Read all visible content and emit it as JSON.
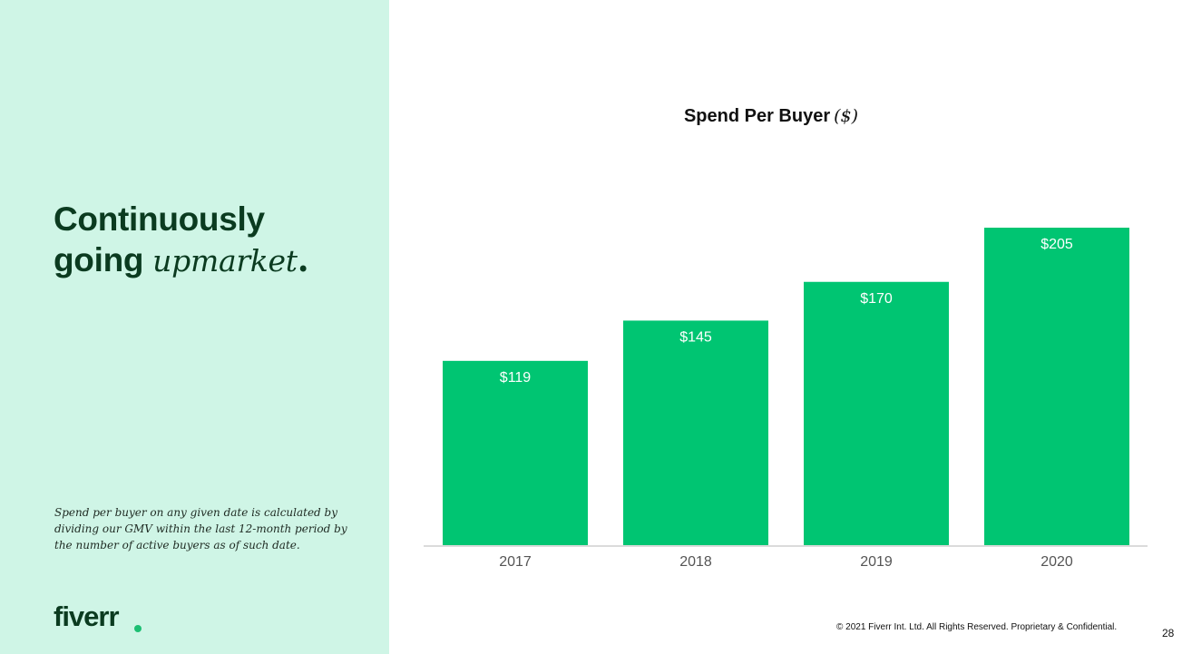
{
  "heading": {
    "line1": "Continuously",
    "line2_plain": "going ",
    "line2_accent": "upmarket",
    "period": "."
  },
  "footnote": "Spend per buyer on any given date is calculated by dividing our GMV within the last 12-month period by the number of active buyers as of such date.",
  "logo": {
    "text": "fiverr",
    "dot_color": "#1dbf73"
  },
  "colors": {
    "panel_bg": "#cff5e6",
    "bar": "#00c572",
    "heading_text": "#0b3b20",
    "axis_line": "#cfcfcf",
    "tick_label": "#555555"
  },
  "chart_data": {
    "type": "bar",
    "title": "Spend Per Buyer",
    "title_unit": "($)",
    "categories": [
      "2017",
      "2018",
      "2019",
      "2020"
    ],
    "values": [
      119,
      145,
      170,
      205
    ],
    "value_labels": [
      "$119",
      "$145",
      "$170",
      "$205"
    ],
    "xlabel": "",
    "ylabel": "",
    "ylim": [
      0,
      205
    ],
    "grid": false,
    "legend": "none"
  },
  "footer": {
    "copyright": "© 2021 Fiverr Int. Ltd. All Rights Reserved. Proprietary & Confidential.",
    "page_number": "28"
  }
}
